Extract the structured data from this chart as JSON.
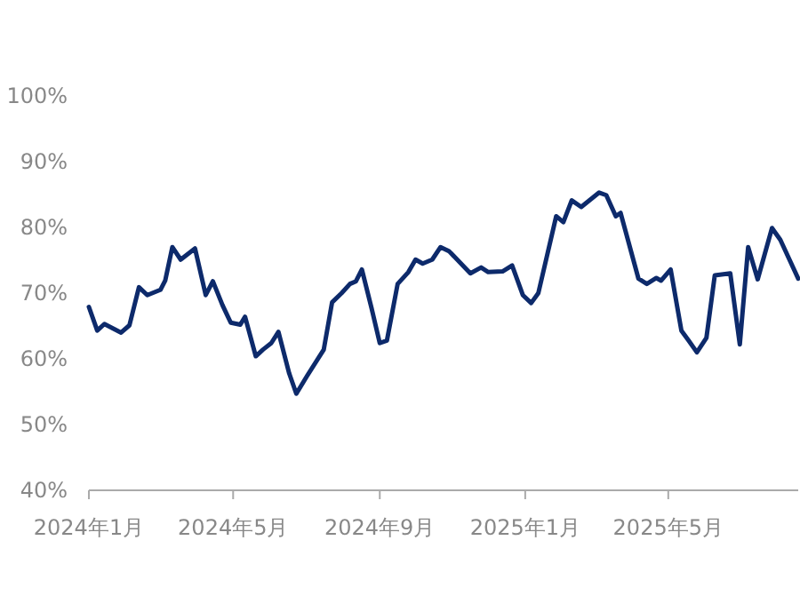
{
  "chart_data": {
    "type": "line",
    "xlim": [
      "2024-01-01",
      "2025-08-18"
    ],
    "xticks": [
      {
        "value": "2024-01-01",
        "label": "2024年1月"
      },
      {
        "value": "2024-05-01",
        "label": "2024年5月"
      },
      {
        "value": "2024-09-01",
        "label": "2024年9月"
      },
      {
        "value": "2025-01-01",
        "label": "2025年1月"
      },
      {
        "value": "2025-05-01",
        "label": "2025年5月"
      }
    ],
    "ylim": [
      40,
      100
    ],
    "yticks": [
      {
        "value": 40,
        "label": "40%"
      },
      {
        "value": 50,
        "label": "50%"
      },
      {
        "value": 60,
        "label": "60%"
      },
      {
        "value": 70,
        "label": "70%"
      },
      {
        "value": 80,
        "label": "80%"
      },
      {
        "value": 90,
        "label": "90%"
      },
      {
        "value": 100,
        "label": "100%"
      }
    ],
    "grid": false,
    "marker": "none",
    "line_style": "solid",
    "x": [
      "2024-01-01",
      "2024-01-08",
      "2024-01-14",
      "2024-01-28",
      "2024-02-04",
      "2024-02-12",
      "2024-02-19",
      "2024-03-01",
      "2024-03-05",
      "2024-03-11",
      "2024-03-18",
      "2024-03-30",
      "2024-04-08",
      "2024-04-14",
      "2024-04-22",
      "2024-04-29",
      "2024-05-07",
      "2024-05-11",
      "2024-05-20",
      "2024-05-26",
      "2024-06-02",
      "2024-06-08",
      "2024-06-17",
      "2024-06-23",
      "2024-07-02",
      "2024-07-16",
      "2024-07-23",
      "2024-07-31",
      "2024-08-07",
      "2024-08-12",
      "2024-08-17",
      "2024-08-25",
      "2024-09-01",
      "2024-09-07",
      "2024-09-16",
      "2024-09-25",
      "2024-10-01",
      "2024-10-07",
      "2024-10-15",
      "2024-10-22",
      "2024-10-29",
      "2024-11-16",
      "2024-11-25",
      "2024-12-01",
      "2024-12-13",
      "2024-12-21",
      "2024-12-30",
      "2025-01-06",
      "2025-01-12",
      "2025-01-27",
      "2025-02-02",
      "2025-02-09",
      "2025-02-17",
      "2025-03-04",
      "2025-03-10",
      "2025-03-18",
      "2025-03-22",
      "2025-04-06",
      "2025-04-13",
      "2025-04-21",
      "2025-04-25",
      "2025-05-03",
      "2025-05-12",
      "2025-05-18",
      "2025-05-25",
      "2025-06-02",
      "2025-06-09",
      "2025-06-22",
      "2025-06-30",
      "2025-07-07",
      "2025-07-15",
      "2025-07-27",
      "2025-08-03",
      "2025-08-18"
    ],
    "series": [
      {
        "color": "#0d2a6b",
        "values": [
          67.9,
          64.3,
          65.3,
          64.0,
          65.1,
          70.9,
          69.7,
          70.5,
          71.9,
          77.0,
          75.1,
          76.8,
          69.7,
          71.8,
          68.2,
          65.5,
          65.2,
          66.4,
          60.4,
          61.4,
          62.4,
          64.1,
          57.8,
          54.7,
          57.4,
          61.4,
          68.6,
          70.0,
          71.4,
          71.8,
          73.6,
          67.8,
          62.4,
          62.8,
          71.4,
          73.2,
          75.1,
          74.5,
          75.1,
          77.0,
          76.4,
          73.0,
          73.9,
          73.2,
          73.3,
          74.2,
          69.7,
          68.5,
          70.0,
          81.7,
          80.8,
          84.1,
          83.1,
          85.3,
          84.9,
          81.7,
          82.2,
          72.2,
          71.4,
          72.3,
          71.9,
          73.6,
          64.3,
          62.8,
          61.0,
          63.2,
          72.7,
          73.0,
          62.2,
          77.0,
          72.1,
          79.9,
          78.1,
          72.2
        ]
      }
    ]
  }
}
